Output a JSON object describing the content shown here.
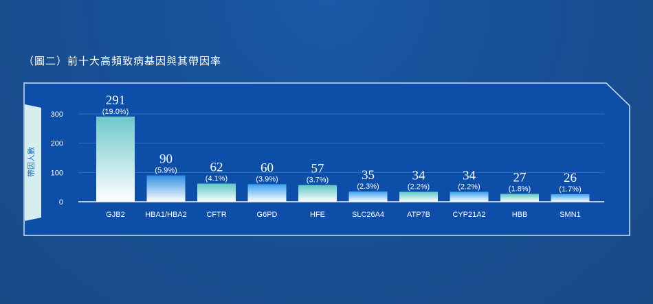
{
  "title": "（圖二）前十大高頻致病基因與其帶因率",
  "chart_data": {
    "type": "bar",
    "title": "（圖二）前十大高頻致病基因與其帶因率",
    "ylabel": "帶因人數",
    "xlabel": "",
    "ylim": [
      0,
      300
    ],
    "yticks": [
      "0",
      "100",
      "200",
      "300"
    ],
    "grid": true,
    "categories": [
      "GJB2",
      "HBA1/HBA2",
      "CFTR",
      "G6PD",
      "HFE",
      "SLC26A4",
      "ATP7B",
      "CYP21A2",
      "HBB",
      "SMN1"
    ],
    "values": [
      291,
      90,
      62,
      60,
      57,
      35,
      34,
      34,
      27,
      26
    ],
    "value_labels": [
      "291",
      "90",
      "62",
      "60",
      "57",
      "35",
      "34",
      "34",
      "27",
      "26"
    ],
    "percent_labels": [
      "(19.0%)",
      "(5.9%)",
      "(4.1%)",
      "(3.9%)",
      "(3.7%)",
      "(2.3%)",
      "(2.2%)",
      "(2.2%)",
      "(1.8%)",
      "(1.7%)"
    ],
    "bar_colors": [
      "#6fc8cc",
      "#2f8fe0",
      "#5cc6c4",
      "#3aa0ee",
      "#5cc6c4",
      "#3aa0ee",
      "#5cc6c4",
      "#3aa0ee",
      "#5cc6c4",
      "#3aa0ee"
    ]
  }
}
